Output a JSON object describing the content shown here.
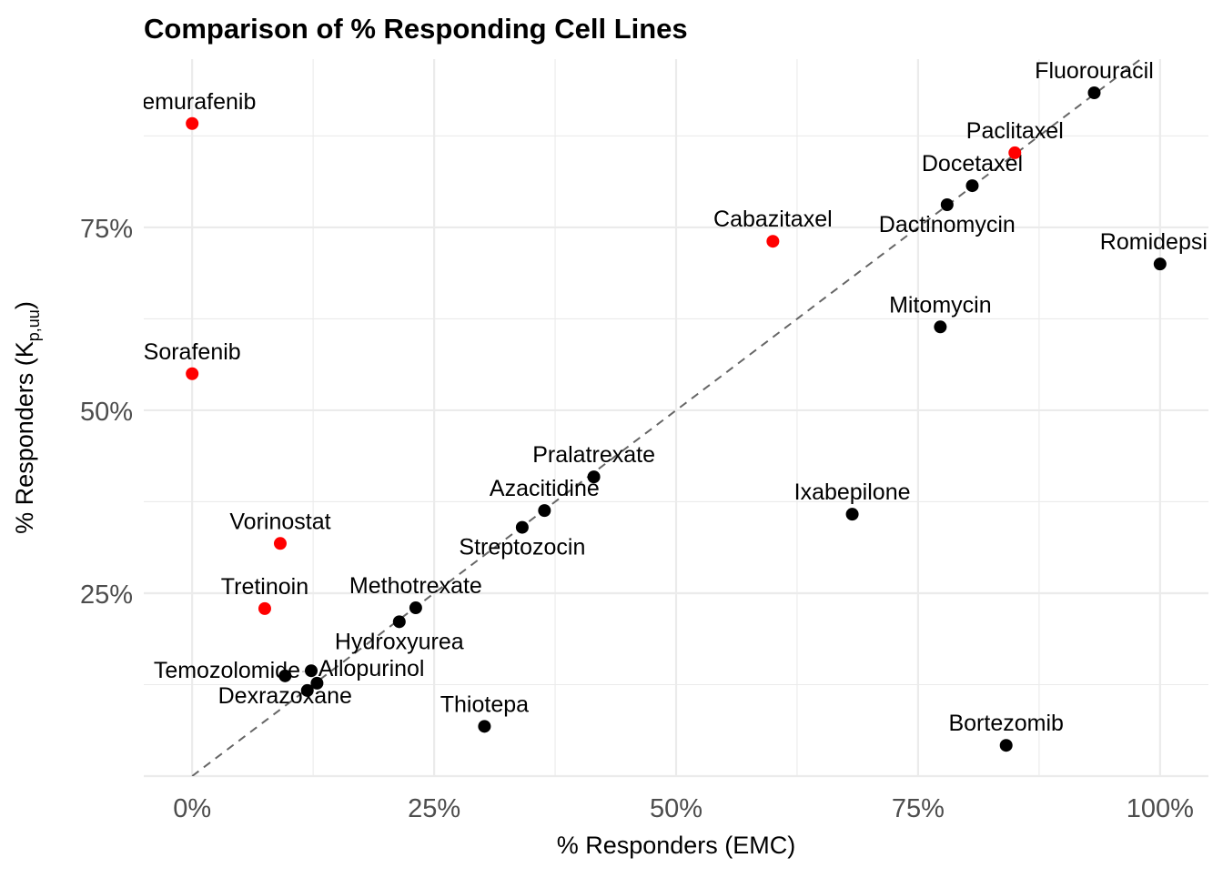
{
  "chart_data": {
    "type": "scatter",
    "title": "Comparison of % Responding Cell Lines",
    "xlabel": "% Responders (EMC)",
    "ylabel": "% Responders (K",
    "ylabel_sub": "p,uu",
    "ylabel_end": ")",
    "xlim": [
      -5,
      105
    ],
    "ylim": [
      0,
      98
    ],
    "x_ticks": [
      0,
      25,
      50,
      75,
      100
    ],
    "x_tick_labels": [
      "0%",
      "25%",
      "50%",
      "75%",
      "100%"
    ],
    "y_ticks": [
      25,
      50,
      75
    ],
    "y_tick_labels": [
      "25%",
      "50%",
      "75%"
    ],
    "grid": true,
    "reference_line": "y = x, dashed",
    "colors": {
      "highlight": "#ff0000",
      "default": "#000000",
      "reference": "#666666",
      "grid": "#ebebeb"
    },
    "points": [
      {
        "label": "Vemurafenib",
        "x": 0,
        "y": 89.2,
        "highlight": true
      },
      {
        "label": "Sorafenib",
        "x": 0,
        "y": 55.0,
        "highlight": true
      },
      {
        "label": "Vorinostat",
        "x": 9.1,
        "y": 31.8,
        "highlight": true
      },
      {
        "label": "Tretinoin",
        "x": 7.5,
        "y": 22.9,
        "highlight": true
      },
      {
        "label": "Cabazitaxel",
        "x": 60.0,
        "y": 73.1,
        "highlight": true
      },
      {
        "label": "Paclitaxel",
        "x": 85.0,
        "y": 85.2,
        "highlight": true
      },
      {
        "label": "Fluorouracil",
        "x": 93.2,
        "y": 93.4,
        "highlight": false
      },
      {
        "label": "Docetaxel",
        "x": 80.6,
        "y": 80.7,
        "highlight": false
      },
      {
        "label": "Dactinomycin",
        "x": 78.0,
        "y": 78.1,
        "highlight": false
      },
      {
        "label": "Romidepsin",
        "x": 100,
        "y": 70.0,
        "highlight": false
      },
      {
        "label": "Mitomycin",
        "x": 77.3,
        "y": 61.4,
        "highlight": false
      },
      {
        "label": "Pralatrexate",
        "x": 41.5,
        "y": 40.9,
        "highlight": false
      },
      {
        "label": "Azacitidine",
        "x": 36.4,
        "y": 36.3,
        "highlight": false
      },
      {
        "label": "Streptozocin",
        "x": 34.1,
        "y": 34.0,
        "highlight": false
      },
      {
        "label": "Ixabepilone",
        "x": 68.2,
        "y": 35.8,
        "highlight": false
      },
      {
        "label": "Methotrexate",
        "x": 23.1,
        "y": 23.0,
        "highlight": false
      },
      {
        "label": "Hydroxyurea",
        "x": 21.4,
        "y": 21.1,
        "highlight": false
      },
      {
        "label": "Dexrazoxane",
        "x": 9.6,
        "y": 13.7,
        "highlight": false
      },
      {
        "label": "Temozolomide",
        "x": 12.3,
        "y": 14.4,
        "highlight": false
      },
      {
        "label": "Allopurinol",
        "x": 11.9,
        "y": 11.7,
        "highlight": false
      },
      {
        "label": "",
        "x": 12.9,
        "y": 12.7,
        "highlight": false
      },
      {
        "label": "Thiotepa",
        "x": 30.2,
        "y": 6.8,
        "highlight": false
      },
      {
        "label": "Bortezomib",
        "x": 84.1,
        "y": 4.2,
        "highlight": false
      }
    ]
  }
}
